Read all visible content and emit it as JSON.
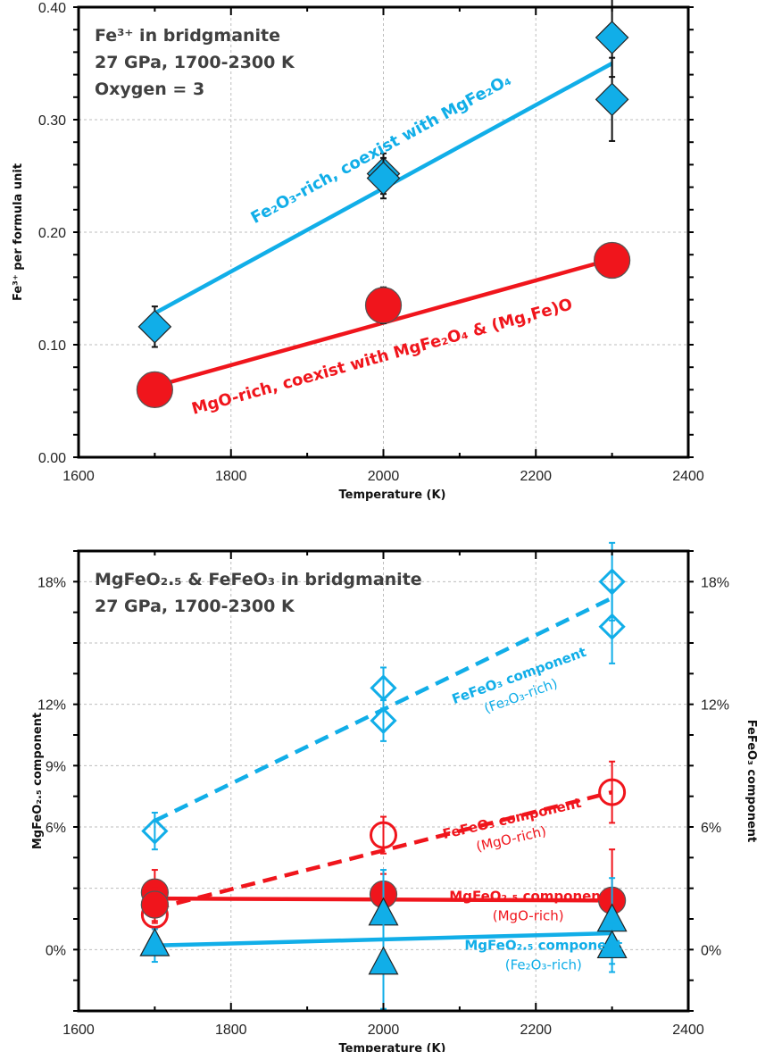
{
  "colors": {
    "blue": "#11aee8",
    "red": "#f0151c",
    "grid": "#bdbdbd",
    "frame": "#000000",
    "title": "#404040"
  },
  "chart_data": [
    {
      "type": "scatter",
      "title_lines": [
        "Fe³⁺ in bridgmanite",
        "27 GPa, 1700-2300 K",
        "Oxygen = 3"
      ],
      "xlabel": "Temperature (K)",
      "ylabel": "Fe³⁺ per formula unit",
      "xlim": [
        1600,
        2400
      ],
      "ylim": [
        0,
        0.4
      ],
      "xticks": [
        "1600",
        "1800",
        "2000",
        "2200",
        "2400"
      ],
      "yticks": [
        "0.00",
        "0.10",
        "0.20",
        "0.30",
        "0.40"
      ],
      "grid": true,
      "series": [
        {
          "color": "blue",
          "marker": "diamond-filled",
          "points": [
            {
              "x": 1700,
              "y": 0.116,
              "err": 0.018
            },
            {
              "x": 2000,
              "y": 0.252,
              "err": 0.018
            },
            {
              "x": 2000,
              "y": 0.248,
              "err": 0.018
            },
            {
              "x": 2300,
              "y": 0.373,
              "err": 0.035
            },
            {
              "x": 2300,
              "y": 0.318,
              "err": 0.037
            }
          ],
          "fit": [
            [
              1700,
              0.128
            ],
            [
              2300,
              0.35
            ]
          ],
          "fit_style": "solid"
        },
        {
          "color": "red",
          "marker": "circle-filled",
          "points": [
            {
              "x": 1700,
              "y": 0.06,
              "err": 0.006
            },
            {
              "x": 2000,
              "y": 0.135,
              "err": 0.016
            },
            {
              "x": 2300,
              "y": 0.175,
              "err": 0.008
            }
          ],
          "fit": [
            [
              1700,
              0.063
            ],
            [
              2300,
              0.176
            ]
          ],
          "fit_style": "solid"
        }
      ],
      "annotations": [
        {
          "text": "Fe₂O₃-rich, coexist with MgFe₂O₄",
          "color": "blue",
          "x": 2000,
          "y": 0.27
        },
        {
          "text": "MgO-rich, coexist with MgFe₂O₄ & (Mg,Fe)O",
          "color": "red",
          "x": 2000,
          "y": 0.085
        }
      ]
    },
    {
      "type": "scatter",
      "title_lines": [
        "MgFeO₂.₅ & FeFeO₃ in bridgmanite",
        "27 GPa, 1700-2300 K"
      ],
      "xlabel": "Temperature (K)",
      "ylabel": "MgFeO₂.₅ component",
      "ylabel_right": "FeFeO₃ component",
      "xlim": [
        1600,
        2400
      ],
      "ylim": [
        -3,
        19.5
      ],
      "xticks": [
        "1600",
        "1800",
        "2000",
        "2200",
        "2400"
      ],
      "yticks": [
        "0%",
        "6%",
        "9%",
        "12%",
        "18%"
      ],
      "ytick_values": [
        0,
        6,
        9,
        12,
        18
      ],
      "yticks_right": [
        "0%",
        "6%",
        "12%",
        "18%"
      ],
      "ytick_values_right": [
        0,
        6,
        12,
        18
      ],
      "grid": true,
      "series": [
        {
          "color": "blue",
          "marker": "diamond-open",
          "points": [
            {
              "x": 1700,
              "y": 5.8,
              "err": 0.9
            },
            {
              "x": 2000,
              "y": 12.8,
              "err": 1.0
            },
            {
              "x": 2000,
              "y": 11.2,
              "err": 1.0
            },
            {
              "x": 2300,
              "y": 18.0,
              "err": 1.9
            },
            {
              "x": 2300,
              "y": 15.8,
              "err": 1.8
            }
          ],
          "fit": [
            [
              1700,
              6.3
            ],
            [
              2300,
              17.2
            ]
          ],
          "fit_style": "dashed"
        },
        {
          "color": "red",
          "marker": "circle-open",
          "points": [
            {
              "x": 1700,
              "y": 1.7,
              "err": 0.4
            },
            {
              "x": 1700,
              "y": 2.2,
              "err": 0.4
            },
            {
              "x": 2000,
              "y": 5.6,
              "err": 0.9
            },
            {
              "x": 2300,
              "y": 7.7,
              "err": 1.5
            }
          ],
          "fit": [
            [
              1700,
              2.0
            ],
            [
              2300,
              7.7
            ]
          ],
          "fit_style": "dashed"
        },
        {
          "color": "red",
          "marker": "circle-filled",
          "points": [
            {
              "x": 1700,
              "y": 2.8,
              "err": 1.1
            },
            {
              "x": 1700,
              "y": 2.2,
              "err": 0.8
            },
            {
              "x": 2000,
              "y": 2.7,
              "err": 1.0
            },
            {
              "x": 2300,
              "y": 2.4,
              "err": 2.5
            }
          ],
          "fit": [
            [
              1700,
              2.5
            ],
            [
              2300,
              2.4
            ]
          ],
          "fit_style": "solid"
        },
        {
          "color": "blue",
          "marker": "triangle-filled",
          "points": [
            {
              "x": 1700,
              "y": 0.2,
              "err": 0.8
            },
            {
              "x": 2000,
              "y": 1.7,
              "err": 2.2
            },
            {
              "x": 2000,
              "y": -0.7,
              "err": 2.2
            },
            {
              "x": 2300,
              "y": 1.4,
              "err": 2.1
            },
            {
              "x": 2300,
              "y": 0.1,
              "err": 1.2
            }
          ],
          "fit": [
            [
              1700,
              0.2
            ],
            [
              2300,
              0.8
            ]
          ],
          "fit_style": "solid"
        }
      ],
      "annotations": [
        {
          "text": "FeFeO₃ component",
          "sub": "(Fe₂O₃-rich)",
          "color": "blue",
          "x": 2180,
          "y": 13.2
        },
        {
          "text": "FeFeO₃ component",
          "sub": "(MgO-rich)",
          "color": "red",
          "x": 2170,
          "y": 6.2
        },
        {
          "text": "MgFeO₂.₅ component",
          "sub": "(MgO-rich)",
          "color": "red",
          "x": 2190,
          "y": 2.4
        },
        {
          "text": "MgFeO₂.₅ component",
          "sub": "(Fe₂O₃-rich)",
          "color": "blue",
          "x": 2210,
          "y": 0
        }
      ]
    }
  ]
}
